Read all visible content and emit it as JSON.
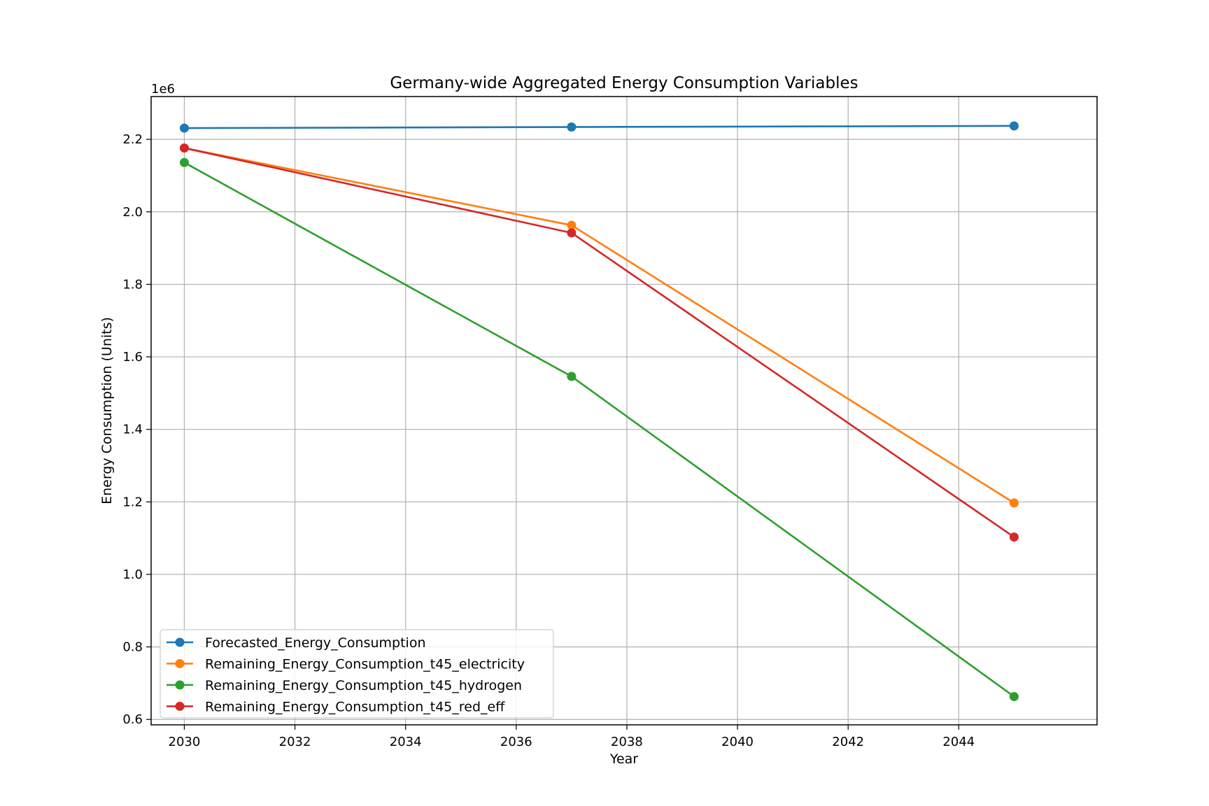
{
  "chart_data": {
    "type": "line",
    "title": "Germany-wide Aggregated Energy Consumption Variables",
    "xlabel": "Year",
    "ylabel": "Energy Consumption (Units)",
    "y_offset_label": "1e6",
    "x": [
      2030,
      2037,
      2045
    ],
    "xlim": [
      2029.4,
      2046.5
    ],
    "ylim": [
      0.585,
      2.318
    ],
    "x_ticks": [
      2030,
      2032,
      2034,
      2036,
      2038,
      2040,
      2042,
      2044
    ],
    "y_ticks": [
      0.6,
      0.8,
      1.0,
      1.2,
      1.4,
      1.6,
      1.8,
      2.0,
      2.2
    ],
    "x_tick_labels": [
      "2030",
      "2032",
      "2034",
      "2036",
      "2038",
      "2040",
      "2042",
      "2044"
    ],
    "y_tick_labels": [
      "0.6",
      "0.8",
      "1.0",
      "1.2",
      "1.4",
      "1.6",
      "1.8",
      "2.0",
      "2.2"
    ],
    "grid": true,
    "legend_position": "bottom-left",
    "series": [
      {
        "name": "Forecasted_Energy_Consumption",
        "color": "#1f77b4",
        "values": [
          2.231,
          2.234,
          2.237
        ]
      },
      {
        "name": "Remaining_Energy_Consumption_t45_electricity",
        "color": "#ff7f0e",
        "values": [
          2.176,
          1.963,
          1.197
        ]
      },
      {
        "name": "Remaining_Energy_Consumption_t45_hydrogen",
        "color": "#2ca02c",
        "values": [
          2.136,
          1.546,
          0.663
        ]
      },
      {
        "name": "Remaining_Energy_Consumption_t45_red_eff",
        "color": "#d62728",
        "values": [
          2.176,
          1.942,
          1.103
        ]
      }
    ]
  }
}
